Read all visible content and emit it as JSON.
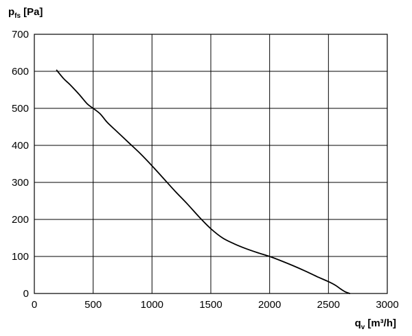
{
  "chart_data": {
    "type": "line",
    "title": "",
    "ylabel": {
      "symbol": "p",
      "subscript": "fs",
      "unit": "[Pa]"
    },
    "xlabel": {
      "symbol": "q",
      "subscript": "v",
      "unit": "[m³/h]"
    },
    "xlim": [
      0,
      3000
    ],
    "ylim": [
      0,
      700
    ],
    "x_ticks": [
      "0",
      "500",
      "1000",
      "1500",
      "2000",
      "2500",
      "3000"
    ],
    "y_ticks": [
      "0",
      "100",
      "200",
      "300",
      "400",
      "500",
      "600",
      "700"
    ],
    "grid": true,
    "line_color": "#000000",
    "series": [
      {
        "x": [
          190,
          250,
          300,
          380,
          450,
          500,
          560,
          620,
          700,
          800,
          900,
          1000,
          1100,
          1200,
          1300,
          1400,
          1500,
          1600,
          1700,
          1800,
          1900,
          2000,
          2100,
          2200,
          2300,
          2400,
          2500,
          2560,
          2600,
          2640,
          2680
        ],
        "y": [
          603,
          580,
          565,
          538,
          512,
          500,
          485,
          462,
          438,
          408,
          378,
          345,
          310,
          275,
          242,
          207,
          175,
          150,
          134,
          121,
          110,
          100,
          88,
          75,
          61,
          46,
          32,
          22,
          13,
          5,
          0
        ]
      }
    ]
  }
}
